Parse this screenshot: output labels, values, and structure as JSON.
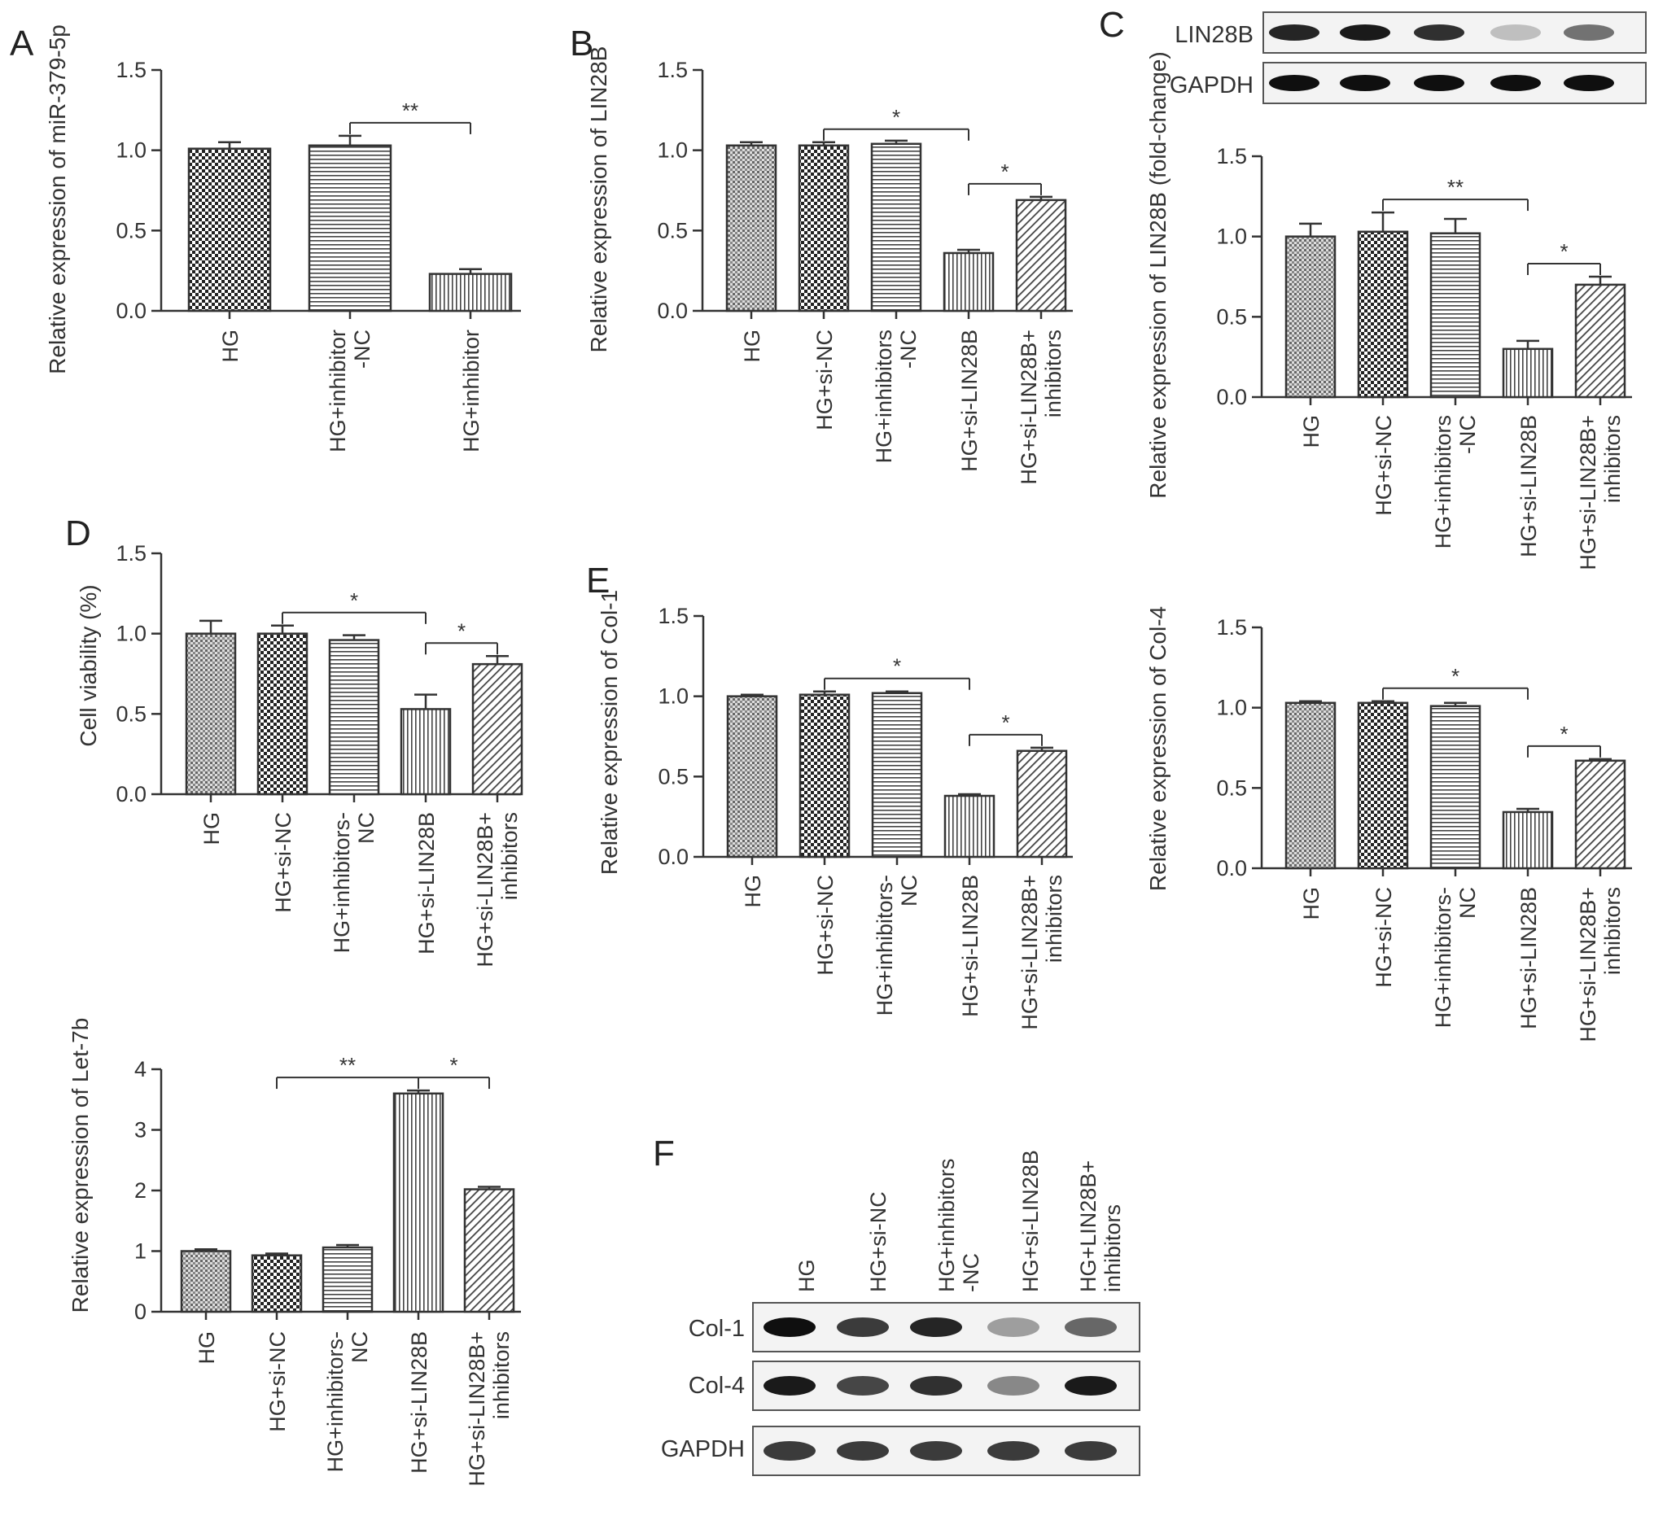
{
  "panel_letters": [
    "A",
    "B",
    "C",
    "D",
    "E",
    "F"
  ],
  "chart_data": [
    {
      "id": "A",
      "type": "bar",
      "ylabel": "Relative expression of miR-379-5p",
      "ylim": [
        0,
        1.5
      ],
      "yticks": [
        "0.0",
        "0.5",
        "1.0",
        "1.5"
      ],
      "categories": [
        "HG",
        "HG+inhibitor -NC",
        "HG+inhibitor"
      ],
      "values": [
        1.01,
        1.03,
        0.23
      ],
      "errors": [
        0.04,
        0.06,
        0.03
      ],
      "patterns": [
        "checker",
        "hlines",
        "vlines"
      ],
      "significance": [
        {
          "from": 1,
          "to": 2,
          "label": "**"
        }
      ]
    },
    {
      "id": "B",
      "type": "bar",
      "ylabel": "Relative expression of LIN28B",
      "ylim": [
        0,
        1.5
      ],
      "yticks": [
        "0.0",
        "0.5",
        "1.0",
        "1.5"
      ],
      "categories": [
        "HG",
        "HG+si-NC",
        "HG+inhibitors -NC",
        "HG+si-LIN28B",
        "HG+si-LIN28B+ inhibitors"
      ],
      "values": [
        1.03,
        1.03,
        1.04,
        0.36,
        0.69
      ],
      "errors": [
        0.02,
        0.02,
        0.02,
        0.02,
        0.02
      ],
      "patterns": [
        "dense",
        "checker",
        "hlines",
        "vlines",
        "diag"
      ],
      "significance": [
        {
          "from": 1,
          "to": 3,
          "label": "*"
        },
        {
          "from": 3,
          "to": 4,
          "label": "*"
        }
      ]
    },
    {
      "id": "C",
      "type": "bar",
      "ylabel": "Relative expression of LIN28B (fold-change)",
      "ylim": [
        0,
        1.5
      ],
      "yticks": [
        "0.0",
        "0.5",
        "1.0",
        "1.5"
      ],
      "categories": [
        "HG",
        "HG+si-NC",
        "HG+inhibitors -NC",
        "HG+si-LIN28B",
        "HG+si-LIN28B+ inhibitors"
      ],
      "values": [
        1.0,
        1.03,
        1.02,
        0.3,
        0.7
      ],
      "errors": [
        0.08,
        0.12,
        0.09,
        0.05,
        0.05
      ],
      "patterns": [
        "dense",
        "checker",
        "hlines",
        "vlines",
        "diag"
      ],
      "significance": [
        {
          "from": 1,
          "to": 3,
          "label": "**"
        },
        {
          "from": 3,
          "to": 4,
          "label": "*"
        }
      ]
    },
    {
      "id": "D",
      "type": "bar",
      "ylabel": "Cell viability (%)",
      "ylim": [
        0,
        1.5
      ],
      "yticks": [
        "0.0",
        "0.5",
        "1.0",
        "1.5"
      ],
      "categories": [
        "HG",
        "HG+si-NC",
        "HG+inhibitors- NC",
        "HG+si-LIN28B",
        "HG+si-LIN28B+ inhibitors"
      ],
      "values": [
        1.0,
        1.0,
        0.96,
        0.53,
        0.81
      ],
      "errors": [
        0.08,
        0.05,
        0.03,
        0.09,
        0.05
      ],
      "patterns": [
        "dense",
        "checker",
        "hlines",
        "vlines",
        "diag"
      ],
      "significance": [
        {
          "from": 1,
          "to": 3,
          "label": "*"
        },
        {
          "from": 3,
          "to": 4,
          "label": "*"
        }
      ]
    },
    {
      "id": "E1",
      "type": "bar",
      "ylabel": "Relative expression of Col-1",
      "ylim": [
        0,
        1.5
      ],
      "yticks": [
        "0.0",
        "0.5",
        "1.0",
        "1.5"
      ],
      "categories": [
        "HG",
        "HG+si-NC",
        "HG+inhibitors- NC",
        "HG+si-LIN28B",
        "HG+si-LIN28B+ inhibitors"
      ],
      "values": [
        1.0,
        1.01,
        1.02,
        0.38,
        0.66
      ],
      "errors": [
        0.01,
        0.02,
        0.01,
        0.01,
        0.02
      ],
      "patterns": [
        "dense",
        "checker",
        "hlines",
        "vlines",
        "diag"
      ],
      "significance": [
        {
          "from": 1,
          "to": 3,
          "label": "*"
        },
        {
          "from": 3,
          "to": 4,
          "label": "*"
        }
      ]
    },
    {
      "id": "E2",
      "type": "bar",
      "ylabel": "Relative expression of Col-4",
      "ylim": [
        0,
        1.5
      ],
      "yticks": [
        "0.0",
        "0.5",
        "1.0",
        "1.5"
      ],
      "categories": [
        "HG",
        "HG+si-NC",
        "HG+inhibitors- NC",
        "HG+si-LIN28B",
        "HG+si-LIN28B+ inhibitors"
      ],
      "values": [
        1.03,
        1.03,
        1.01,
        0.35,
        0.67
      ],
      "errors": [
        0.01,
        0.01,
        0.02,
        0.02,
        0.01
      ],
      "patterns": [
        "dense",
        "checker",
        "hlines",
        "vlines",
        "diag"
      ],
      "significance": [
        {
          "from": 1,
          "to": 3,
          "label": "*"
        },
        {
          "from": 3,
          "to": 4,
          "label": "*"
        }
      ]
    },
    {
      "id": "G",
      "type": "bar",
      "ylabel": "Relative expression of Let-7b",
      "ylim": [
        0,
        4
      ],
      "yticks": [
        "0",
        "1",
        "2",
        "3",
        "4"
      ],
      "categories": [
        "HG",
        "HG+si-NC",
        "HG+inhibitors- NC",
        "HG+si-LIN28B",
        "HG+si-LIN28B+ inhibitors"
      ],
      "values": [
        1.0,
        0.93,
        1.06,
        3.6,
        2.02
      ],
      "errors": [
        0.03,
        0.03,
        0.04,
        0.05,
        0.04
      ],
      "patterns": [
        "dense",
        "checker",
        "hlines",
        "vlines",
        "diag"
      ],
      "significance": [
        {
          "from": 1,
          "to": 3,
          "label": "**"
        },
        {
          "from": 3,
          "to": 4,
          "label": "*"
        }
      ]
    }
  ],
  "blots": [
    {
      "id": "C-blot",
      "rows": [
        {
          "label": "LIN28B",
          "intensities": [
            0.9,
            0.95,
            0.85,
            0.2,
            0.55
          ]
        },
        {
          "label": "GAPDH",
          "intensities": [
            1,
            1,
            1,
            1,
            1
          ]
        }
      ]
    },
    {
      "id": "F-blot",
      "lanes": [
        "HG",
        "HG+si-NC",
        "HG+inhibitors -NC",
        "HG+si-LIN28B",
        "HG+LIN28B+ inhibitors"
      ],
      "rows": [
        {
          "label": "Col-1",
          "intensities": [
            1,
            0.8,
            0.9,
            0.35,
            0.6
          ]
        },
        {
          "label": "Col-4",
          "intensities": [
            0.95,
            0.75,
            0.85,
            0.45,
            0.95
          ]
        },
        {
          "label": "GAPDH",
          "intensities": [
            0.8,
            0.8,
            0.8,
            0.8,
            0.8
          ]
        }
      ]
    }
  ]
}
